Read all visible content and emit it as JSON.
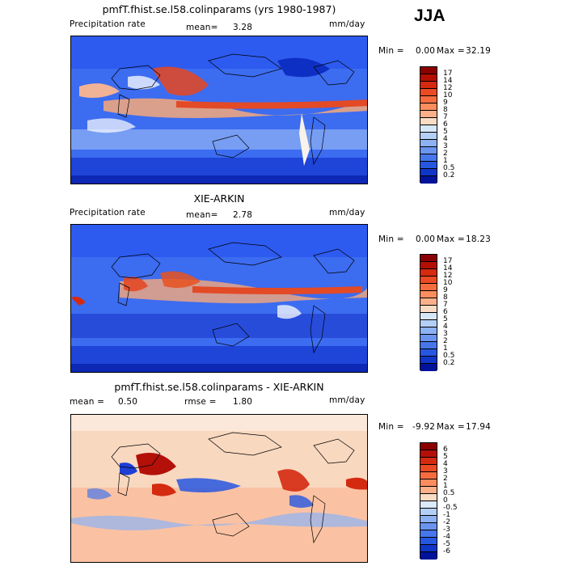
{
  "season": "JJA",
  "panels": [
    {
      "title": "pmfT.fhist.se.l58.colinparams (yrs 1980-1987)",
      "left_label": "Precipitation rate",
      "stat_label": "mean=",
      "stat_value": "3.28",
      "stat2_label": "",
      "stat2_value": "",
      "units": "mm/day",
      "min_label": "Min =",
      "min_value": "0.00",
      "max_label": "Max =",
      "max_value": "32.19",
      "palette": "precip"
    },
    {
      "title": "XIE-ARKIN",
      "left_label": "Precipitation rate",
      "stat_label": "mean=",
      "stat_value": "2.78",
      "stat2_label": "",
      "stat2_value": "",
      "units": "mm/day",
      "min_label": "Min =",
      "min_value": "0.00",
      "max_label": "Max =",
      "max_value": "18.23",
      "palette": "precip"
    },
    {
      "title": "pmfT.fhist.se.l58.colinparams - XIE-ARKIN",
      "left_label": "mean =",
      "stat_label": "",
      "stat_value": "0.50",
      "stat2_label": "rmse =",
      "stat2_value": "1.80",
      "units": "mm/day",
      "min_label": "Min =",
      "min_value": "-9.92",
      "max_label": "Max =",
      "max_value": "17.94",
      "palette": "diff"
    }
  ],
  "colorbars": {
    "precip": {
      "labels": [
        "17",
        "14",
        "12",
        "10",
        "9",
        "8",
        "7",
        "6",
        "5",
        "4",
        "3",
        "2",
        "1",
        "0.5",
        "0.2"
      ],
      "colors": [
        "#8b0000",
        "#b30f00",
        "#d42a10",
        "#ea4a24",
        "#f56c3e",
        "#fb8d5f",
        "#fbb08a",
        "#f9dcc3",
        "#d6e8f8",
        "#b3cff6",
        "#8db2f3",
        "#6a94f0",
        "#4776ea",
        "#2756e0",
        "#0f36c8",
        "#00139a"
      ]
    },
    "diff": {
      "labels": [
        "6",
        "5",
        "4",
        "3",
        "2",
        "1",
        "0.5",
        "0",
        "-0.5",
        "-1",
        "-2",
        "-3",
        "-4",
        "-5",
        "-6"
      ],
      "colors": [
        "#8b0000",
        "#b3100a",
        "#d42a10",
        "#ea4a24",
        "#f56c3e",
        "#fb8d5f",
        "#fbb08a",
        "#f9dcc3",
        "#dbe9f8",
        "#b3cff6",
        "#8db2f3",
        "#6a94f0",
        "#4776ea",
        "#2756e0",
        "#0f36c8",
        "#00139a"
      ]
    }
  }
}
